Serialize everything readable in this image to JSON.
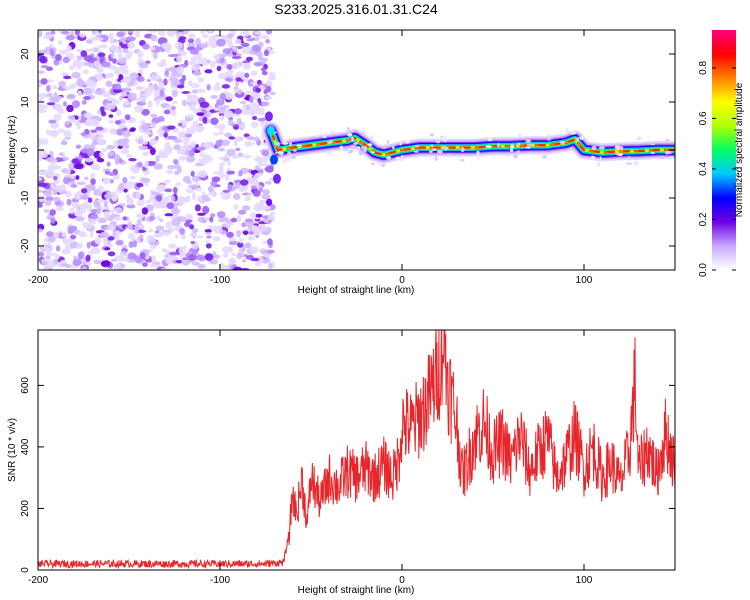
{
  "page_title": "S233.2025.316.01.31.C24",
  "chart_data": [
    {
      "type": "heatmap",
      "name": "spectrogram",
      "xlabel": "Height of straight line (km)",
      "ylabel": "Frequency (Hz)",
      "xlim": [
        -200,
        150
      ],
      "ylim": [
        -25,
        25
      ],
      "xticks": [
        -200,
        -100,
        0,
        100
      ],
      "yticks": [
        -20,
        -10,
        0,
        10,
        20
      ],
      "noise_region_x": [
        -200,
        -71
      ],
      "ridge": {
        "x": [
          -72,
          -68,
          -60,
          -50,
          -40,
          -30,
          -26,
          -20,
          -15,
          -10,
          -5,
          0,
          10,
          20,
          30,
          40,
          50,
          60,
          70,
          80,
          90,
          95,
          100,
          110,
          120,
          130,
          140,
          150
        ],
        "freq": [
          4,
          0,
          0.5,
          1,
          1.5,
          2,
          2.5,
          1,
          -0.5,
          -1,
          -0.5,
          0,
          0.5,
          0.5,
          0.5,
          0.5,
          0.8,
          0.8,
          1,
          1,
          1.5,
          2.2,
          0,
          -0.5,
          -0.3,
          -0.2,
          0,
          0
        ]
      },
      "colorbar": {
        "label": "Normalized spectral amplitude",
        "range": [
          0,
          0.95
        ],
        "ticks": [
          "0.0",
          "0.2",
          "0.4",
          "0.6",
          "0.8"
        ],
        "tick_values": [
          0,
          0.2,
          0.4,
          0.6,
          0.8
        ],
        "colors": [
          "#ffffff",
          "#c8a8ff",
          "#7000e0",
          "#0000ff",
          "#00c8ff",
          "#00ff60",
          "#b0ff00",
          "#ffff00",
          "#ff8000",
          "#ff0000",
          "#ff0080"
        ]
      }
    },
    {
      "type": "line",
      "name": "snr",
      "xlabel": "Height of straight line (km)",
      "ylabel": "SNR (10 * v/v)",
      "xlim": [
        -200,
        150
      ],
      "ylim": [
        0,
        780
      ],
      "xticks": [
        -200,
        -100,
        0,
        100
      ],
      "yticks": [
        0,
        200,
        400,
        600
      ],
      "color": "#e8252a",
      "series": [
        {
          "name": "SNR",
          "x": [
            -200,
            -150,
            -100,
            -75,
            -65,
            -62,
            -60,
            -58,
            -55,
            -52,
            -50,
            -45,
            -40,
            -35,
            -30,
            -25,
            -20,
            -15,
            -10,
            -5,
            -2,
            0,
            5,
            10,
            15,
            20,
            23,
            25,
            28,
            30,
            33,
            35,
            40,
            45,
            50,
            55,
            60,
            65,
            70,
            75,
            80,
            85,
            90,
            95,
            100,
            105,
            110,
            115,
            120,
            125,
            128,
            130,
            135,
            140,
            145,
            150
          ],
          "y": [
            20,
            20,
            20,
            20,
            25,
            120,
            250,
            180,
            290,
            150,
            300,
            220,
            300,
            270,
            320,
            300,
            330,
            300,
            340,
            300,
            360,
            480,
            460,
            500,
            560,
            650,
            770,
            620,
            540,
            480,
            310,
            330,
            430,
            480,
            380,
            420,
            350,
            440,
            320,
            380,
            430,
            300,
            360,
            440,
            330,
            400,
            300,
            350,
            280,
            390,
            610,
            320,
            400,
            310,
            450,
            330
          ]
        }
      ]
    }
  ]
}
